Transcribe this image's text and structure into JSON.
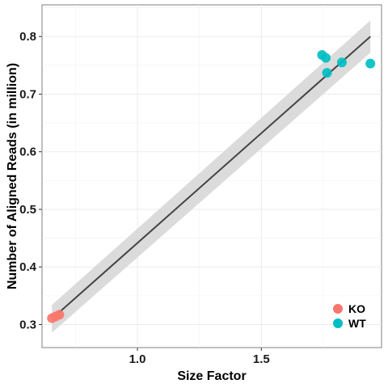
{
  "chart_data": {
    "type": "scatter",
    "title": "",
    "xlabel": "Size Factor",
    "ylabel": "Number of Aligned Reads (in million)",
    "xlim": [
      0.615,
      1.985
    ],
    "ylim": [
      0.26,
      0.855
    ],
    "x_ticks": [
      1.0,
      1.5
    ],
    "x_tick_labels": [
      "1.0",
      "1.5"
    ],
    "y_ticks": [
      0.3,
      0.4,
      0.5,
      0.6,
      0.7,
      0.8
    ],
    "y_tick_labels": [
      "0.3",
      "0.4",
      "0.5",
      "0.6",
      "0.7",
      "0.8"
    ],
    "grid": true,
    "legend_position": "bottom-right",
    "series": [
      {
        "name": "KO",
        "color": "#F8766D",
        "points": [
          {
            "x": 0.655,
            "y": 0.311
          },
          {
            "x": 0.67,
            "y": 0.314
          },
          {
            "x": 0.685,
            "y": 0.317
          }
        ]
      },
      {
        "name": "WT",
        "color": "#00BFC4",
        "points": [
          {
            "x": 1.745,
            "y": 0.768
          },
          {
            "x": 1.76,
            "y": 0.763
          },
          {
            "x": 1.765,
            "y": 0.737
          },
          {
            "x": 1.825,
            "y": 0.755
          },
          {
            "x": 1.94,
            "y": 0.753
          }
        ]
      }
    ],
    "trend_line": {
      "x": [
        0.655,
        1.94
      ],
      "y": [
        0.31,
        0.8
      ],
      "color": "#444444",
      "band_color": "#d9d9d9",
      "band_half_width": [
        0.024,
        0.028
      ]
    }
  }
}
